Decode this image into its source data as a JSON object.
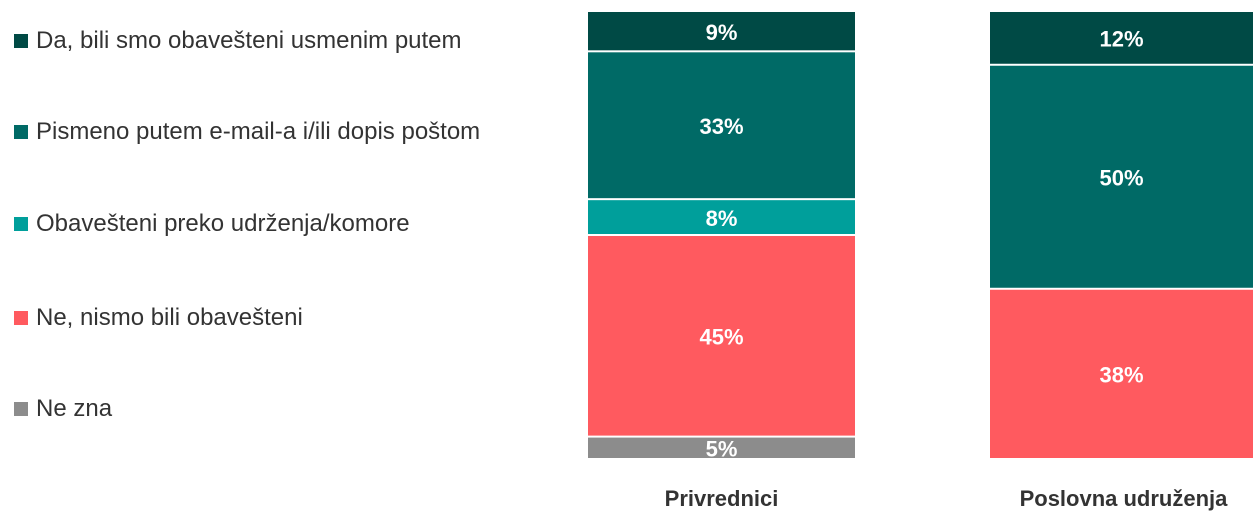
{
  "chart_data": {
    "type": "stacked_bar",
    "categories": [
      "Privrednici",
      "Poslovna udruženja"
    ],
    "series": [
      {
        "name": "Da, bili smo obavešteni usmenim putem",
        "color": "#004a45",
        "values": [
          9,
          12
        ],
        "value_labels": [
          "9%",
          "12%"
        ]
      },
      {
        "name": "Pismeno putem e-mail-a i/ili dopis poštom",
        "color": "#006a66",
        "values": [
          33,
          50
        ],
        "value_labels": [
          "33%",
          "50%"
        ]
      },
      {
        "name": "Obavešteni preko udrženja/komore",
        "color": "#009f9b",
        "values": [
          8,
          null
        ],
        "value_labels": [
          "8%",
          null
        ]
      },
      {
        "name": "Ne, nismo bili obavešteni",
        "color": "#ff5a5f",
        "values": [
          45,
          38
        ],
        "value_labels": [
          "45%",
          "38%"
        ]
      },
      {
        "name": "Ne zna",
        "color": "#8c8c8c",
        "values": [
          5,
          null
        ],
        "value_labels": [
          "5%",
          null
        ]
      }
    ],
    "ylim": [
      0,
      100
    ]
  }
}
